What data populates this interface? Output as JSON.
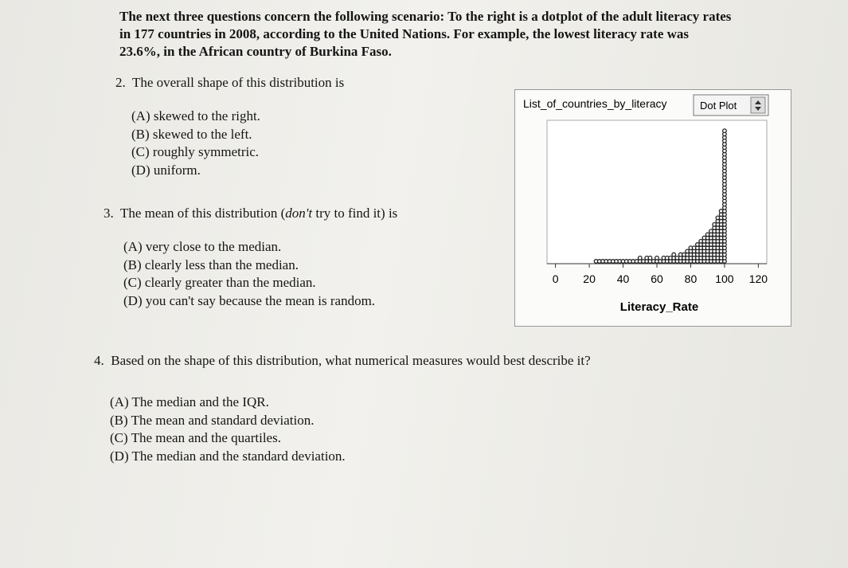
{
  "intro": "The next three questions concern the following scenario: To the right is a dotplot of the adult literacy rates in 177 countries in 2008, according to the United Nations. For example, the lowest literacy rate was 23.6%, in the African country of Burkina Faso.",
  "questions": [
    {
      "number": "2.",
      "prompt": [
        "The overall shape of this distribution is"
      ],
      "options": [
        "(A) skewed to the right.",
        "(B) skewed to the left.",
        "(C) roughly symmetric.",
        "(D) uniform."
      ]
    },
    {
      "number": "3.",
      "prompt": [
        "The mean of this distribution (",
        "don't",
        " try to find it) is"
      ],
      "options": [
        "(A) very close to the median.",
        "(B) clearly less than the median.",
        "(C) clearly greater than the median.",
        "(D) you can't say because the mean is random."
      ]
    },
    {
      "number": "4.",
      "prompt": [
        "Based on the shape of this distribution, what numerical measures would best describe it?"
      ],
      "options": [
        "(A) The median and the IQR.",
        "(B) The mean and standard deviation.",
        "(C) The mean and the quartiles.",
        "(D) The median and the standard deviation."
      ]
    }
  ],
  "chart_data": {
    "type": "dotplot",
    "title": "List_of_countries_by_literacy",
    "menu": "Dot Plot",
    "x_label": "Literacy_Rate",
    "color": "#222222",
    "xlim": [
      -5,
      125
    ],
    "xticks": [
      0,
      20,
      40,
      60,
      80,
      100,
      120
    ],
    "x": [
      24,
      26,
      28,
      30,
      32,
      34,
      36,
      38,
      40,
      42,
      44,
      46,
      48,
      50,
      52,
      54,
      56,
      58,
      60,
      62,
      64,
      66,
      68,
      70,
      72,
      74,
      76,
      78,
      80,
      82,
      84,
      86,
      88,
      90,
      92,
      94,
      96,
      98,
      100
    ],
    "counts": [
      1,
      1,
      1,
      1,
      1,
      1,
      1,
      1,
      1,
      1,
      1,
      1,
      1,
      2,
      1,
      2,
      2,
      1,
      2,
      1,
      2,
      2,
      2,
      3,
      2,
      3,
      3,
      4,
      5,
      5,
      6,
      7,
      8,
      9,
      10,
      12,
      14,
      16,
      40
    ]
  }
}
